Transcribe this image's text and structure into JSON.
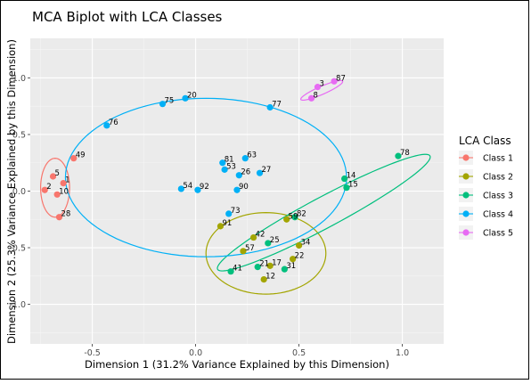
{
  "chart_data": {
    "type": "scatter",
    "title": "MCA Biplot with LCA Classes",
    "xlabel": "Dimension 1 (31.2% Variance Explained by this Dimension)",
    "ylabel": "Dimension 2 (25.3% Variance Explained by this Dimension)",
    "xlim": [
      -0.8,
      1.2
    ],
    "ylim": [
      -1.35,
      1.35
    ],
    "x_ticks": [
      -0.5,
      0.0,
      0.5,
      1.0
    ],
    "x_tick_labels": [
      "-0.5",
      "0.0",
      "0.5",
      "1.0"
    ],
    "y_ticks": [
      -1.0,
      -0.5,
      0.0,
      0.5,
      1.0
    ],
    "y_tick_labels": [
      "-1.0",
      "-0.5",
      "0.0",
      "0.5",
      "1.0"
    ],
    "grid": true,
    "legend": {
      "title": "LCA Class",
      "position": "right",
      "entries": [
        "Class 1",
        "Class 2",
        "Class 3",
        "Class 4",
        "Class 5"
      ]
    },
    "series": [
      {
        "name": "Class 1",
        "color": "#F8766D",
        "points": [
          {
            "label": "5",
            "x": -0.69,
            "y": 0.13
          },
          {
            "label": "2",
            "x": -0.73,
            "y": 0.01
          },
          {
            "label": "10",
            "x": -0.67,
            "y": -0.03
          },
          {
            "label": "1",
            "x": -0.64,
            "y": 0.07
          },
          {
            "label": "28",
            "x": -0.66,
            "y": -0.23
          },
          {
            "label": "49",
            "x": -0.59,
            "y": 0.29
          }
        ],
        "ellipse": {
          "cx": -0.68,
          "cy": 0.03,
          "rx": 0.07,
          "ry": 0.26,
          "angle": 0
        }
      },
      {
        "name": "Class 2",
        "color": "#A3A500",
        "points": [
          {
            "label": "91",
            "x": 0.12,
            "y": -0.31
          },
          {
            "label": "57",
            "x": 0.23,
            "y": -0.53
          },
          {
            "label": "42",
            "x": 0.28,
            "y": -0.41
          },
          {
            "label": "59",
            "x": 0.44,
            "y": -0.25
          },
          {
            "label": "34",
            "x": 0.5,
            "y": -0.48
          },
          {
            "label": "22",
            "x": 0.47,
            "y": -0.6
          },
          {
            "label": "17",
            "x": 0.36,
            "y": -0.66
          },
          {
            "label": "12",
            "x": 0.33,
            "y": -0.78
          }
        ],
        "ellipse": {
          "cx": 0.34,
          "cy": -0.55,
          "rx": 0.29,
          "ry": 0.36,
          "angle": 0
        }
      },
      {
        "name": "Class 3",
        "color": "#00BF7D",
        "points": [
          {
            "label": "78",
            "x": 0.98,
            "y": 0.31
          },
          {
            "label": "14",
            "x": 0.72,
            "y": 0.11
          },
          {
            "label": "15",
            "x": 0.73,
            "y": 0.03
          },
          {
            "label": "82",
            "x": 0.48,
            "y": -0.23
          },
          {
            "label": "25",
            "x": 0.35,
            "y": -0.46
          },
          {
            "label": "31",
            "x": 0.43,
            "y": -0.69
          },
          {
            "label": "41",
            "x": 0.17,
            "y": -0.71
          },
          {
            "label": "21",
            "x": 0.3,
            "y": -0.67
          }
        ],
        "ellipse": {
          "cx": 0.62,
          "cy": -0.19,
          "rx": 0.72,
          "ry": 0.11,
          "angle": 45
        }
      },
      {
        "name": "Class 4",
        "color": "#00B0F6",
        "points": [
          {
            "label": "75",
            "x": -0.16,
            "y": 0.77
          },
          {
            "label": "20",
            "x": -0.05,
            "y": 0.82
          },
          {
            "label": "76",
            "x": -0.43,
            "y": 0.58
          },
          {
            "label": "77",
            "x": 0.36,
            "y": 0.74
          },
          {
            "label": "81",
            "x": 0.13,
            "y": 0.25
          },
          {
            "label": "63",
            "x": 0.24,
            "y": 0.29
          },
          {
            "label": "53",
            "x": 0.14,
            "y": 0.19
          },
          {
            "label": "26",
            "x": 0.21,
            "y": 0.14
          },
          {
            "label": "27",
            "x": 0.31,
            "y": 0.16
          },
          {
            "label": "54",
            "x": -0.07,
            "y": 0.02
          },
          {
            "label": "92",
            "x": 0.01,
            "y": 0.01
          },
          {
            "label": "90",
            "x": 0.2,
            "y": 0.01
          },
          {
            "label": "73",
            "x": 0.16,
            "y": -0.2
          }
        ],
        "ellipse": {
          "cx": 0.05,
          "cy": 0.12,
          "rx": 0.68,
          "ry": 0.7,
          "angle": 0
        }
      },
      {
        "name": "Class 5",
        "color": "#E76BF3",
        "points": [
          {
            "label": "3",
            "x": 0.59,
            "y": 0.92
          },
          {
            "label": "87",
            "x": 0.67,
            "y": 0.97
          },
          {
            "label": "8",
            "x": 0.56,
            "y": 0.82
          }
        ],
        "ellipse": {
          "cx": 0.61,
          "cy": 0.89,
          "rx": 0.13,
          "ry": 0.03,
          "angle": 40
        }
      }
    ]
  }
}
